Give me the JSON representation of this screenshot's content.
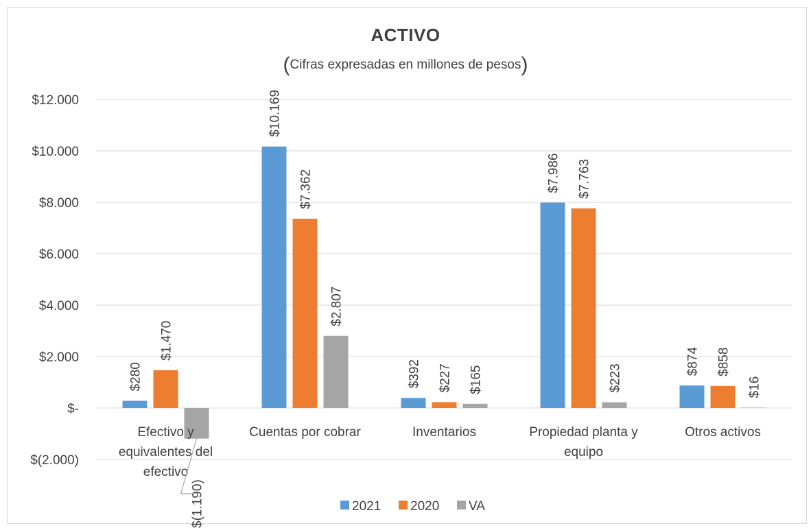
{
  "chart_data": {
    "type": "bar",
    "title": "ACTIVO",
    "subtitle": "Cifras expresadas en millones de pesos",
    "categories": [
      "Efectivo y equivalentes del efectivo",
      "Cuentas por cobrar",
      "Inventarios",
      "Propiedad planta y equipo",
      "Otros activos"
    ],
    "category_lines": [
      [
        "Efectivo y",
        "equivalentes del",
        "efectivo"
      ],
      [
        "Cuentas por cobrar"
      ],
      [
        "Inventarios"
      ],
      [
        "Propiedad planta y",
        "equipo"
      ],
      [
        "Otros activos"
      ]
    ],
    "series": [
      {
        "name": "2021",
        "color": "#5b9bd5",
        "values": [
          280,
          10169,
          392,
          7986,
          874
        ],
        "labels": [
          "$280",
          "$10.169",
          "$392",
          "$7.986",
          "$874"
        ]
      },
      {
        "name": "2020",
        "color": "#ed7d31",
        "values": [
          1470,
          7362,
          227,
          7763,
          858
        ],
        "labels": [
          "$1.470",
          "$7.362",
          "$227",
          "$7.763",
          "$858"
        ]
      },
      {
        "name": "VA",
        "color": "#a5a5a5",
        "values": [
          -1190,
          2807,
          165,
          223,
          16
        ],
        "labels": [
          "$(1.190)",
          "$2.807",
          "$165",
          "$223",
          "$16"
        ]
      }
    ],
    "yticks": [
      {
        "value": 12000,
        "label": "$12.000"
      },
      {
        "value": 10000,
        "label": "$10.000"
      },
      {
        "value": 8000,
        "label": "$8.000"
      },
      {
        "value": 6000,
        "label": "$6.000"
      },
      {
        "value": 4000,
        "label": "$4.000"
      },
      {
        "value": 2000,
        "label": "$2.000"
      },
      {
        "value": 0,
        "label": "$-"
      },
      {
        "value": -2000,
        "label": "$(2.000)"
      }
    ],
    "ylim": [
      -2000,
      12000
    ],
    "grid": true,
    "legend": "bottom"
  }
}
